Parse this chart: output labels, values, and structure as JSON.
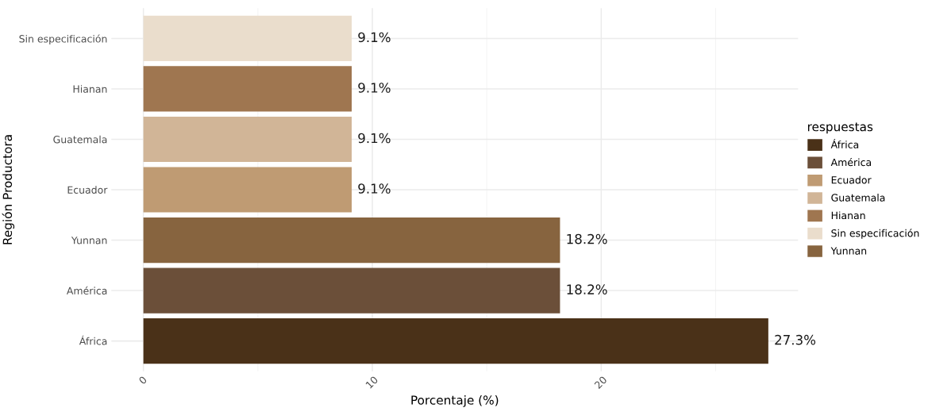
{
  "chart_data": {
    "type": "bar",
    "orientation": "horizontal",
    "xlabel": "Porcentaje (%)",
    "ylabel": "Región Productora",
    "legend_title": "respuestas",
    "legend": "right",
    "grid": true,
    "categories": [
      "Sin especificación",
      "Hianan",
      "Guatemala",
      "Ecuador",
      "Yunnan",
      "América",
      "África"
    ],
    "xlim": [
      -1.4,
      28.6
    ],
    "xticks": [
      0,
      10,
      20
    ],
    "series": [
      {
        "name": "África",
        "color": "#4a3118",
        "values": [
          null,
          null,
          null,
          null,
          null,
          null,
          27.3
        ],
        "value_labels": [
          null,
          null,
          null,
          null,
          null,
          null,
          "27.3%"
        ]
      },
      {
        "name": "América",
        "color": "#6b4f39",
        "values": [
          null,
          null,
          null,
          null,
          null,
          18.2,
          null
        ],
        "value_labels": [
          null,
          null,
          null,
          null,
          null,
          "18.2%",
          null
        ]
      },
      {
        "name": "Ecuador",
        "color": "#bf9b73",
        "values": [
          null,
          null,
          null,
          9.1,
          null,
          null,
          null
        ],
        "value_labels": [
          null,
          null,
          null,
          "9.1%",
          null,
          null,
          null
        ]
      },
      {
        "name": "Guatemala",
        "color": "#d1b597",
        "values": [
          null,
          null,
          9.1,
          null,
          null,
          null,
          null
        ],
        "value_labels": [
          null,
          null,
          "9.1%",
          null,
          null,
          null,
          null
        ]
      },
      {
        "name": "Hianan",
        "color": "#9f7650",
        "values": [
          null,
          9.1,
          null,
          null,
          null,
          null,
          null
        ],
        "value_labels": [
          null,
          "9.1%",
          null,
          null,
          null,
          null,
          null
        ]
      },
      {
        "name": "Sin especificación",
        "color": "#eaddcc",
        "values": [
          9.1,
          null,
          null,
          null,
          null,
          null,
          null
        ],
        "value_labels": [
          "9.1%",
          null,
          null,
          null,
          null,
          null,
          null
        ]
      },
      {
        "name": "Yunnan",
        "color": "#87643f",
        "values": [
          null,
          null,
          null,
          null,
          18.2,
          null,
          null
        ],
        "value_labels": [
          null,
          null,
          null,
          null,
          "18.2%",
          null,
          null
        ]
      }
    ]
  }
}
